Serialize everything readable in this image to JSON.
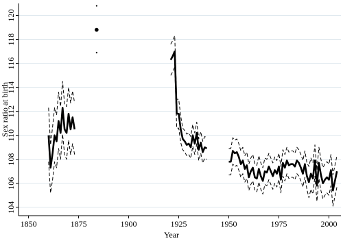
{
  "chart_data": {
    "type": "line",
    "x_label": "Year",
    "y_label": "Sex ratio at birth",
    "x": [
      1860,
      1861,
      1862,
      1863,
      1864,
      1865,
      1866,
      1867,
      1868,
      1869,
      1870,
      1871,
      1872,
      1873,
      1874,
      1884,
      1885,
      1921,
      1922,
      1923,
      1924,
      1925,
      1926,
      1927,
      1928,
      1929,
      1930,
      1931,
      1932,
      1933,
      1934,
      1935,
      1936,
      1937,
      1938,
      1939,
      1940,
      1950,
      1951,
      1952,
      1953,
      1954,
      1955,
      1956,
      1957,
      1958,
      1959,
      1960,
      1961,
      1962,
      1963,
      1964,
      1965,
      1966,
      1967,
      1968,
      1969,
      1970,
      1971,
      1972,
      1973,
      1974,
      1975,
      1976,
      1977,
      1978,
      1979,
      1980,
      1981,
      1982,
      1983,
      1984,
      1985,
      1986,
      1987,
      1988,
      1989,
      1990,
      1991,
      1992,
      1993,
      1994,
      1995,
      1996,
      1997,
      1998,
      1999,
      2000,
      2001,
      2002,
      2003,
      2004
    ],
    "series": [
      {
        "color": "#000000",
        "dashed": false,
        "values": [
          110.0,
          107.3,
          108.5,
          110.0,
          109.5,
          111.2,
          110.2,
          112.3,
          110.5,
          110.2,
          111.8,
          110.5,
          111.5,
          110.5,
          null,
          118.8,
          null,
          116.3,
          116.6,
          117.0,
          111.8,
          111.8,
          110.5,
          109.7,
          109.5,
          109.2,
          109.3,
          109.0,
          110.0,
          109.3,
          110.2,
          108.8,
          109.4,
          108.6,
          109.0,
          108.9,
          null,
          107.8,
          107.8,
          108.7,
          108.5,
          108.6,
          108.2,
          107.6,
          107.9,
          107.2,
          107.5,
          106.5,
          107.0,
          107.3,
          106.5,
          106.4,
          107.2,
          106.6,
          106.2,
          107.0,
          106.9,
          107.4,
          107.0,
          106.6,
          107.1,
          106.8,
          107.4,
          106.3,
          107.7,
          107.3,
          107.9,
          107.5,
          107.6,
          107.6,
          107.4,
          107.9,
          107.7,
          107.3,
          106.8,
          107.6,
          106.6,
          106.1,
          106.8,
          106.4,
          107.9,
          105.8,
          107.7,
          106.7,
          106.0,
          106.3,
          106.5,
          106.3,
          107.1,
          105.4,
          106.2,
          107.0
        ]
      },
      {
        "color": "#000000",
        "dashed": true,
        "values": [
          112.3,
          109.2,
          110.7,
          112.3,
          111.7,
          113.6,
          112.4,
          114.5,
          112.6,
          112.4,
          114.0,
          112.7,
          113.7,
          112.7,
          null,
          120.8,
          null,
          117.6,
          117.9,
          118.3,
          113.0,
          113.0,
          111.6,
          110.6,
          110.4,
          110.1,
          110.2,
          109.9,
          110.9,
          110.2,
          111.1,
          109.7,
          110.3,
          109.5,
          109.9,
          109.8,
          null,
          108.9,
          108.9,
          109.8,
          109.6,
          109.7,
          109.3,
          108.7,
          109.0,
          108.3,
          108.6,
          107.6,
          108.1,
          108.4,
          107.6,
          107.5,
          108.3,
          107.7,
          107.3,
          108.1,
          108.0,
          108.5,
          108.1,
          107.7,
          108.2,
          107.9,
          108.5,
          107.4,
          108.8,
          108.4,
          109.0,
          108.6,
          108.7,
          108.7,
          108.5,
          109.0,
          108.8,
          108.4,
          107.9,
          108.7,
          107.7,
          107.4,
          108.1,
          107.7,
          109.2,
          107.1,
          109.0,
          108.0,
          107.3,
          107.6,
          107.8,
          107.6,
          108.4,
          106.7,
          107.5,
          108.3
        ]
      },
      {
        "color": "#000000",
        "dashed": true,
        "values": [
          107.8,
          105.2,
          106.3,
          107.8,
          107.3,
          108.9,
          108.0,
          110.1,
          108.4,
          108.0,
          109.6,
          108.4,
          109.3,
          108.4,
          null,
          116.9,
          null,
          115.0,
          115.3,
          115.7,
          110.6,
          110.6,
          109.4,
          108.8,
          108.6,
          108.3,
          108.4,
          108.1,
          109.1,
          108.4,
          109.3,
          107.9,
          108.5,
          107.7,
          108.1,
          108.0,
          null,
          106.7,
          106.7,
          107.6,
          107.4,
          107.5,
          107.1,
          106.5,
          106.8,
          106.1,
          106.4,
          105.4,
          105.9,
          106.2,
          105.4,
          105.3,
          106.1,
          105.5,
          105.1,
          105.9,
          105.8,
          106.3,
          105.9,
          105.5,
          106.0,
          105.7,
          106.3,
          105.2,
          106.6,
          106.2,
          106.8,
          106.4,
          106.5,
          106.5,
          106.3,
          106.8,
          106.6,
          106.2,
          105.7,
          106.5,
          105.5,
          104.8,
          105.5,
          105.1,
          106.6,
          104.5,
          106.4,
          105.4,
          104.7,
          105.0,
          105.2,
          105.0,
          105.8,
          104.1,
          104.9,
          105.7
        ]
      }
    ],
    "xlim": [
      1845,
      2006
    ],
    "xticks": [
      1850,
      1875,
      1900,
      1925,
      1950,
      1975,
      2000
    ],
    "ylim": [
      103.3,
      121
    ],
    "yticks": [
      104,
      106,
      108,
      110,
      112,
      114,
      116,
      118,
      120
    ],
    "grid": true,
    "grid_color": "#dfe8ee"
  }
}
